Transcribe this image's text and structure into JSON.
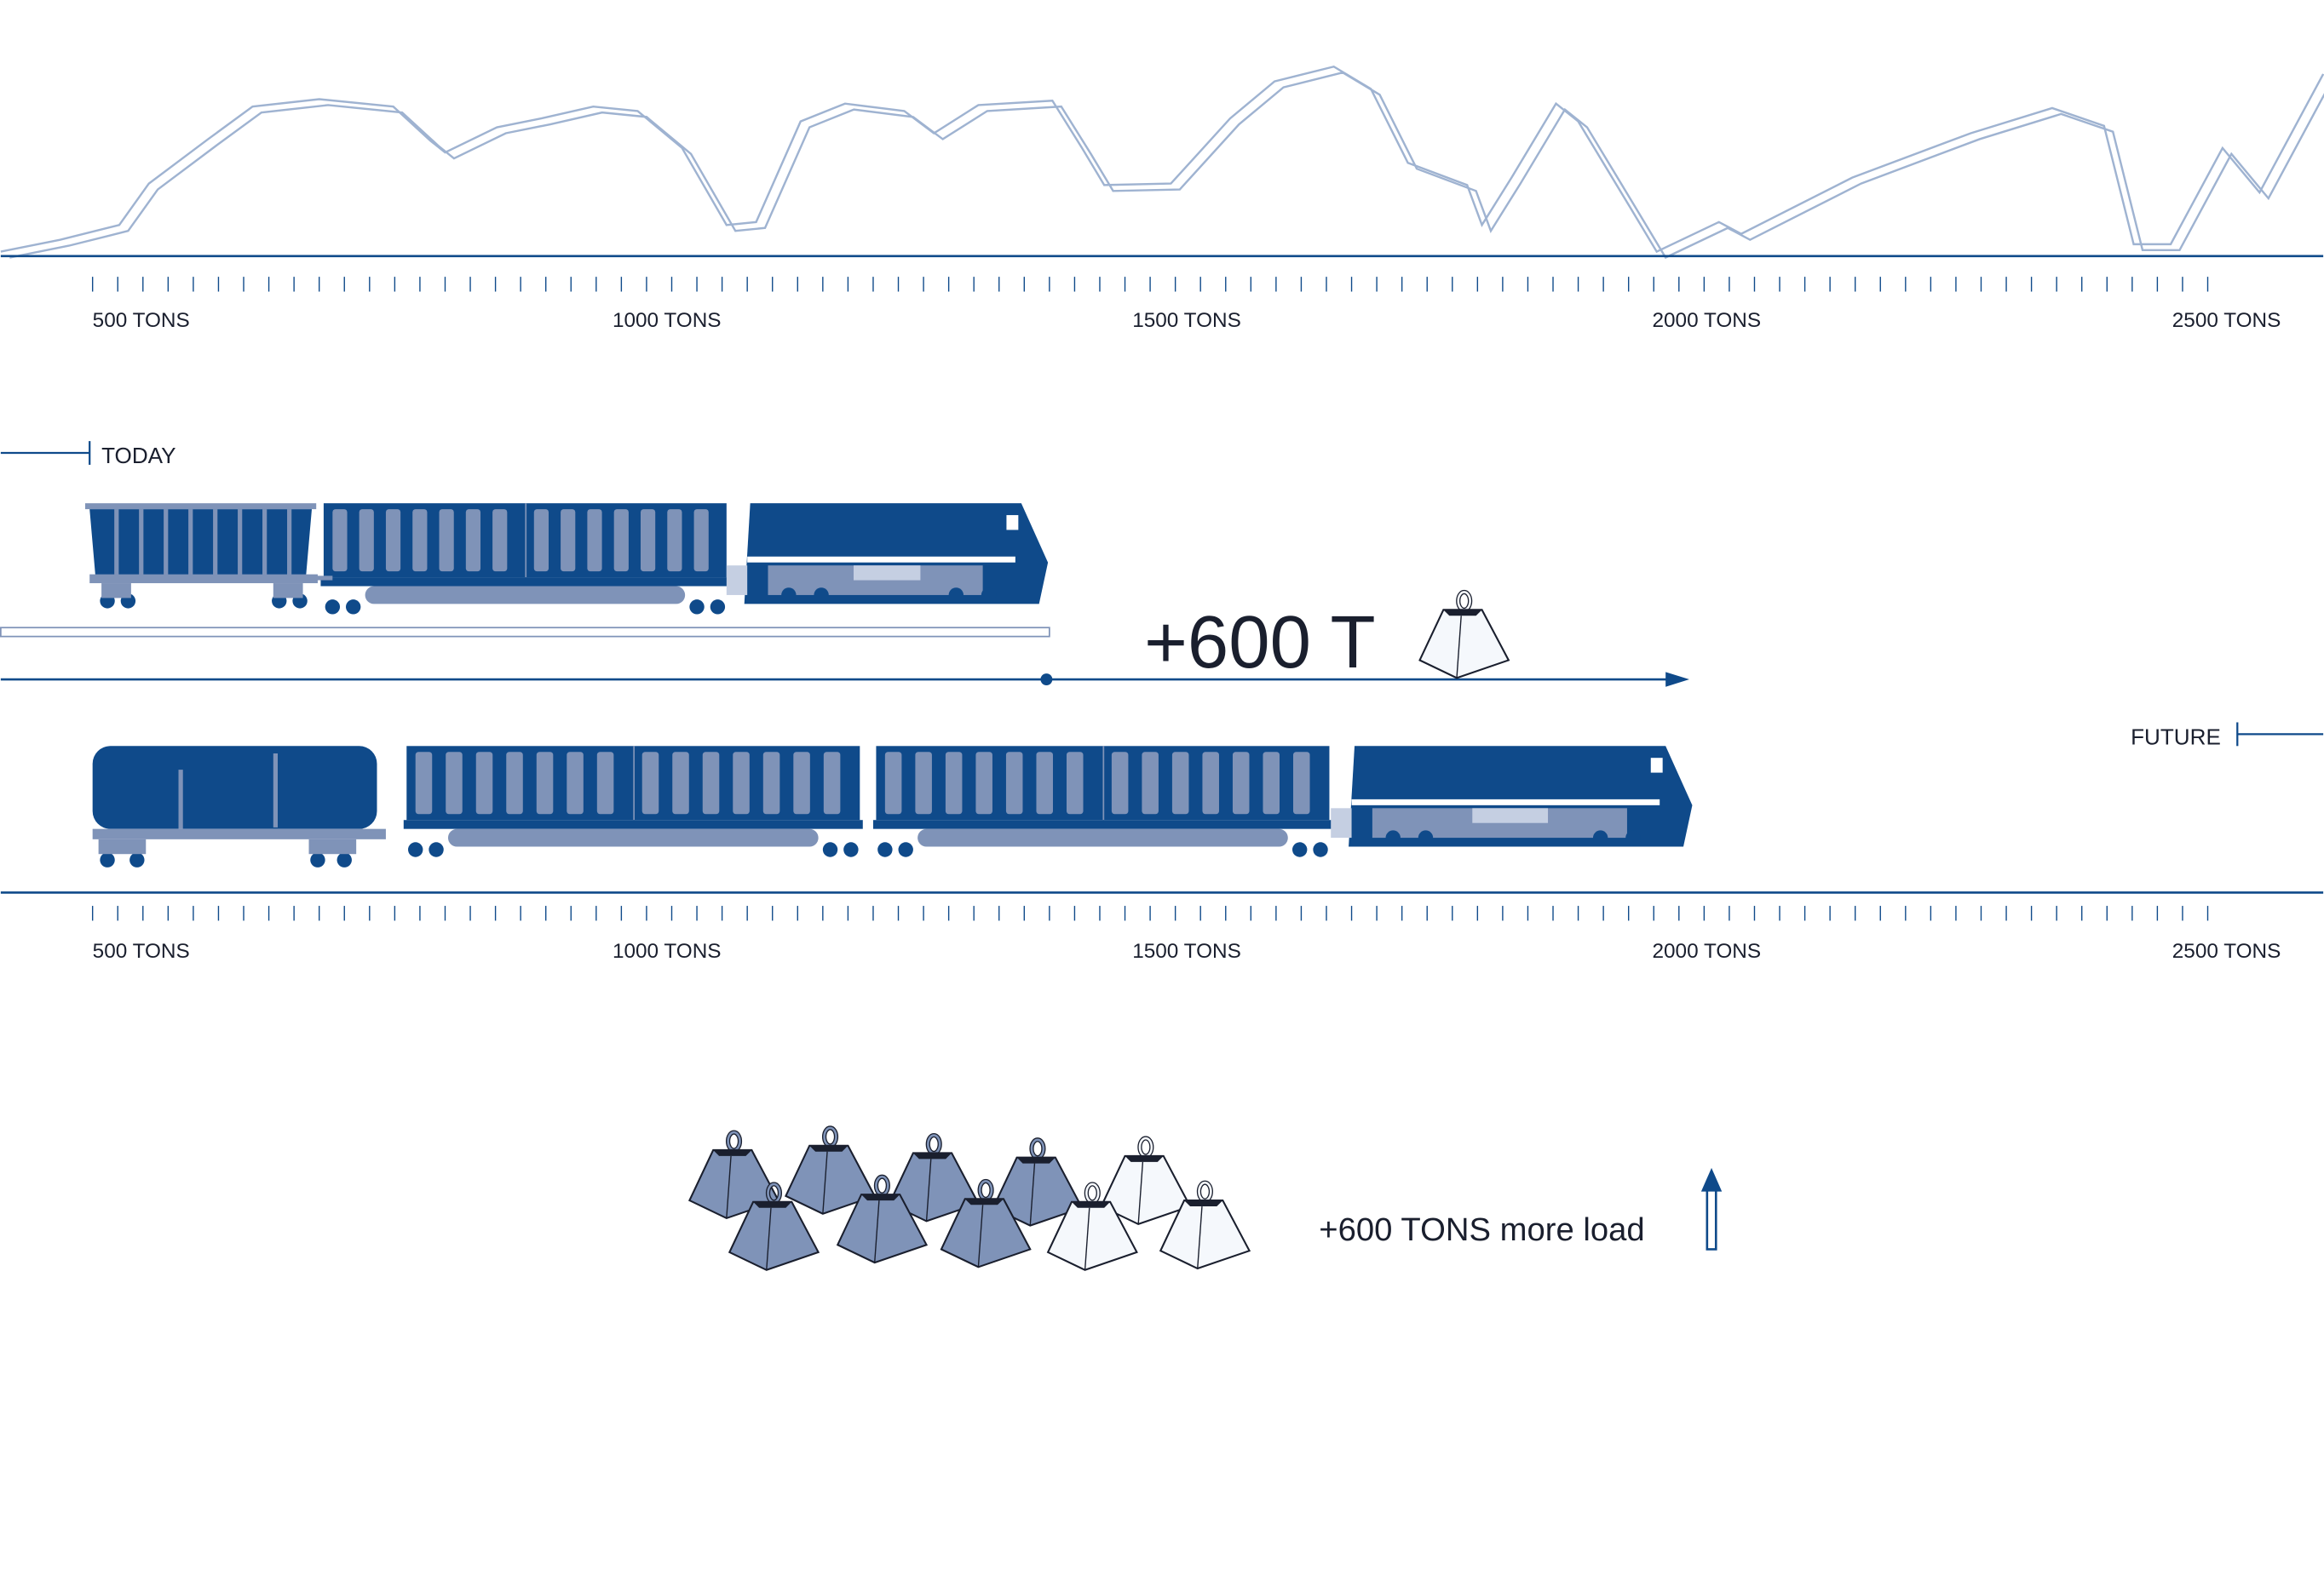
{
  "colors": {
    "navy": "#0f4a8a",
    "steel": "#7f93b8",
    "light": "#c5cfe2",
    "profile": "#9fb3d1",
    "ink": "#1a1f2e",
    "white_weight": "#f5f8fc"
  },
  "scale": {
    "tick_labels": [
      "500  TONS",
      "1000  TONS",
      "1500  TONS",
      "2000  TONS",
      "2500  TONS"
    ],
    "tick_values": [
      500,
      1000,
      1500,
      2000,
      2500
    ]
  },
  "today": {
    "label": "TODAY"
  },
  "future": {
    "label": "FUTURE"
  },
  "increase": {
    "label": "+600  T"
  },
  "legend": {
    "text": "+600 TONS more load",
    "blue_weights": 7,
    "white_weights": 3
  },
  "icons": {
    "weight": "weight-icon",
    "arrow": "arrow-up-icon"
  }
}
